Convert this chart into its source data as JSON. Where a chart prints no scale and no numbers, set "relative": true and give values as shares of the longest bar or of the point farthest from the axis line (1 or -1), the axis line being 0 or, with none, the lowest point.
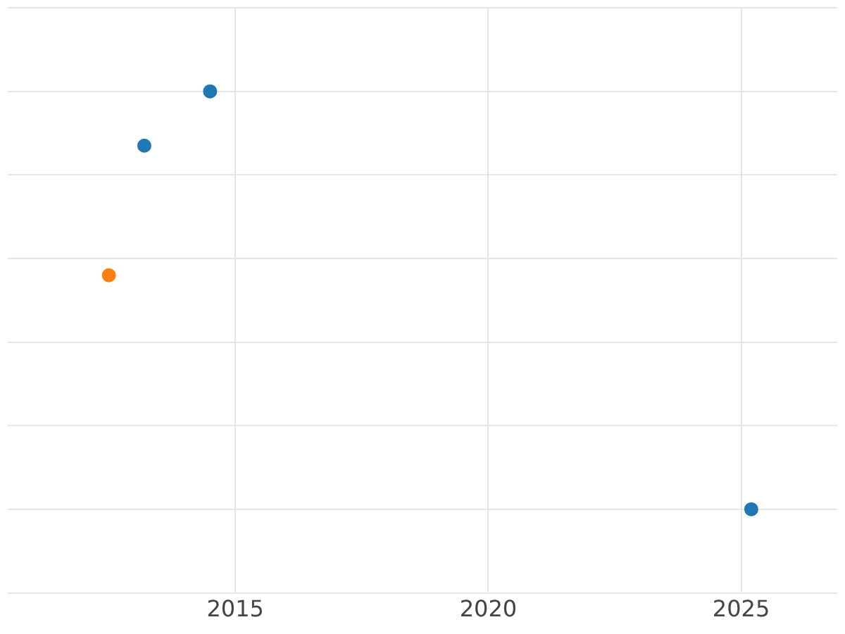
{
  "chart_data": {
    "type": "scatter",
    "relative": true,
    "xlim": [
      2010.5,
      2026.9
    ],
    "xticks": [
      2015,
      2020,
      2025
    ],
    "grid": true,
    "tick_labels": "x",
    "marker": "circle",
    "legend": false,
    "series": [
      {
        "color": "#1f77b4",
        "x": [
          2013.2,
          2014.5,
          2025.2
        ],
        "values": [
          0.87,
          1,
          0
        ]
      },
      {
        "color": "#ff7f0e",
        "x": [
          2012.5
        ],
        "values": [
          0.56
        ]
      }
    ]
  }
}
